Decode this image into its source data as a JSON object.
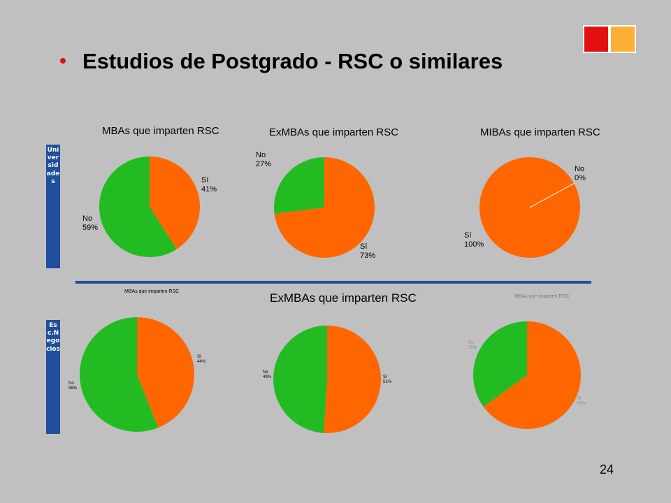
{
  "title": "Estudios de Postgrado - RSC o similares",
  "page_number": "24",
  "row_labels": {
    "top": "Universidades",
    "bottom": "Esc.Negocios"
  },
  "colors": {
    "si": "#ff6600",
    "no": "#22bb22",
    "accent_red": "#e31010",
    "accent_orange": "#fcb035",
    "band": "#1f4e9c"
  },
  "chart_data": [
    {
      "type": "pie",
      "title": "MBAs que imparten RSC",
      "slices": [
        {
          "label": "Sí",
          "value": 41,
          "value_label": "41%",
          "color": "#ff6600"
        },
        {
          "label": "No",
          "value": 59,
          "value_label": "59%",
          "color": "#22bb22"
        }
      ]
    },
    {
      "type": "pie",
      "title": "ExMBAs que imparten RSC",
      "slices": [
        {
          "label": "Sí",
          "value": 73,
          "value_label": "73%",
          "color": "#ff6600"
        },
        {
          "label": "No",
          "value": 27,
          "value_label": "27%",
          "color": "#22bb22"
        }
      ]
    },
    {
      "type": "pie",
      "title": "MIBAs que imparten RSC",
      "slices": [
        {
          "label": "Sí",
          "value": 100,
          "value_label": "100%",
          "color": "#ff6600"
        },
        {
          "label": "No",
          "value": 0,
          "value_label": "0%",
          "color": "#22bb22"
        }
      ]
    },
    {
      "type": "pie",
      "title": "MBAs que imparten RSC",
      "slices": [
        {
          "label": "SI",
          "value": 44,
          "value_label": "44%",
          "color": "#ff6600"
        },
        {
          "label": "No",
          "value": 56,
          "value_label": "56%",
          "color": "#22bb22"
        }
      ]
    },
    {
      "type": "pie",
      "title": "ExMBAs que imparten RSC",
      "slices": [
        {
          "label": "SI",
          "value": 51,
          "value_label": "51%",
          "color": "#ff6600"
        },
        {
          "label": "No",
          "value": 49,
          "value_label": "49%",
          "color": "#22bb22"
        }
      ]
    },
    {
      "type": "pie",
      "title": "MBAs que imparten RSC",
      "slices": [
        {
          "label": "SI",
          "value": 65,
          "value_label": "65%",
          "color": "#ff6600"
        },
        {
          "label": "No",
          "value": 35,
          "value_label": "35%",
          "color": "#22bb22"
        }
      ]
    }
  ]
}
